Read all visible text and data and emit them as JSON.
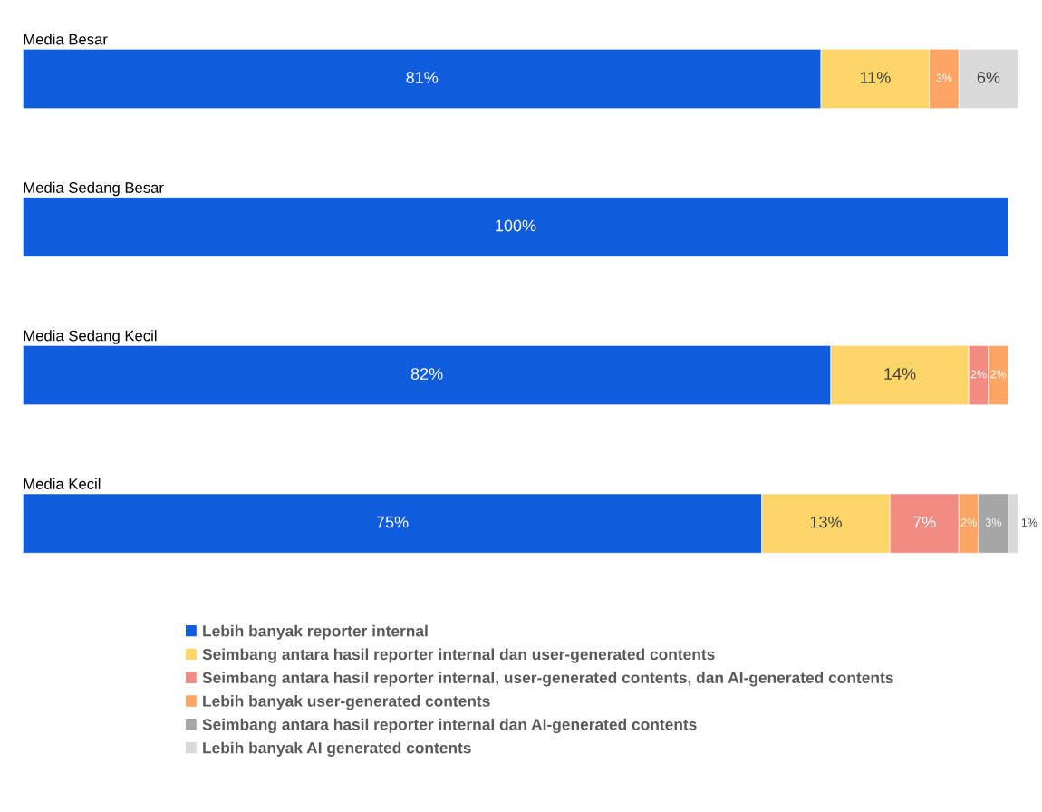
{
  "chart_data": {
    "type": "bar",
    "orientation": "horizontal",
    "stacked": true,
    "legend": "bottom",
    "categories": [
      "Media Besar",
      "Media Sedang Besar",
      "Media Sedang Kecil",
      "Media Kecil"
    ],
    "series": [
      {
        "name": "Lebih banyak reporter internal",
        "color": "#0f5cdc",
        "values": [
          81,
          100,
          82,
          75
        ],
        "value_labels": [
          "81%",
          "100%",
          "82%",
          "75%"
        ]
      },
      {
        "name": "Seimbang antara hasil reporter internal dan user-generated contents",
        "color": "#fdd568",
        "values": [
          11,
          null,
          14,
          13
        ],
        "value_labels": [
          "11%",
          null,
          "14%",
          "13%"
        ]
      },
      {
        "name": "Seimbang antara hasil reporter internal, user-generated contents, dan AI-generated contents",
        "color": "#f28b82",
        "values": [
          null,
          null,
          2,
          7
        ],
        "value_labels": [
          null,
          null,
          "2%",
          "7%"
        ]
      },
      {
        "name": "Lebih banyak user-generated contents",
        "color": "#fda565",
        "values": [
          3,
          null,
          2,
          2
        ],
        "value_labels": [
          "3%",
          null,
          "2%",
          "2%"
        ]
      },
      {
        "name": "Seimbang antara hasil reporter internal dan AI-generated contents",
        "color": "#a6a6a6",
        "values": [
          null,
          null,
          null,
          3
        ],
        "value_labels": [
          null,
          null,
          null,
          "3%"
        ]
      },
      {
        "name": "Lebih banyak AI generated contents",
        "color": "#d9d9d9",
        "values": [
          6,
          null,
          null,
          1
        ],
        "value_labels": [
          "6%",
          null,
          null,
          "1%"
        ]
      }
    ]
  }
}
